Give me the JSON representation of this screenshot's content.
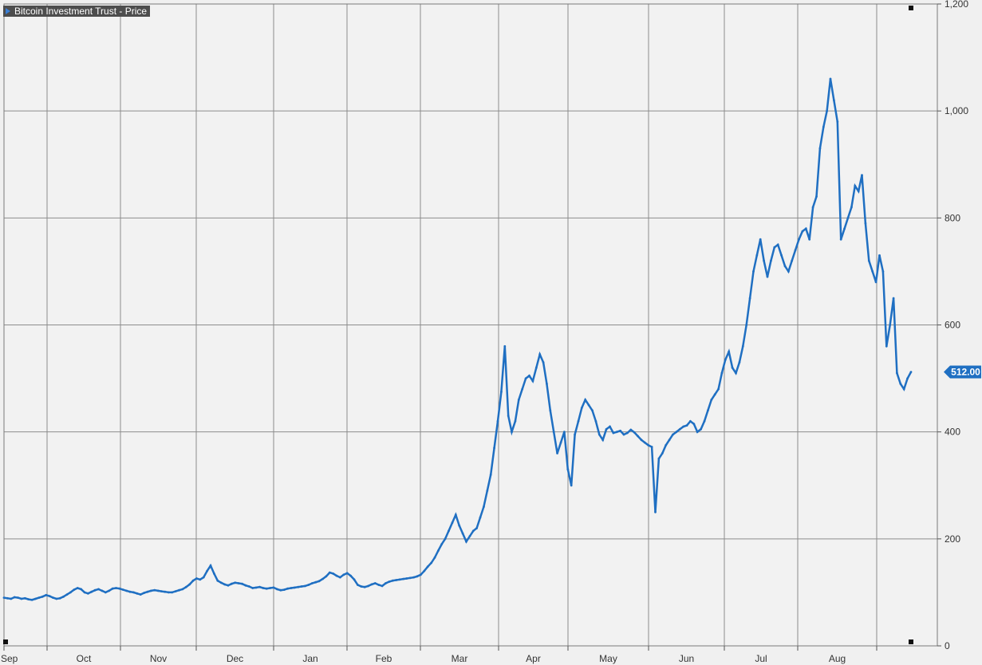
{
  "chart_data": {
    "type": "line",
    "series_label": "Bitcoin Investment Trust - Price",
    "last_value_label": "512.00",
    "last_value": 512,
    "ylim": [
      0,
      1200
    ],
    "y_ticks": [
      {
        "value": 0,
        "label": "0"
      },
      {
        "value": 200,
        "label": "200"
      },
      {
        "value": 400,
        "label": "400"
      },
      {
        "value": 600,
        "label": "600"
      },
      {
        "value": 800,
        "label": "800"
      },
      {
        "value": 1000,
        "label": "1,000"
      },
      {
        "value": 1200,
        "label": "1,200"
      }
    ],
    "x_ticks": [
      "Sep",
      "Oct",
      "Nov",
      "Dec",
      "Jan",
      "Feb",
      "Mar",
      "Apr",
      "May",
      "Jun",
      "Jul",
      "Aug"
    ],
    "series": [
      {
        "color": "#1f6fc2",
        "values": [
          90,
          89,
          88,
          91,
          90,
          88,
          89,
          87,
          86,
          88,
          90,
          92,
          95,
          93,
          90,
          88,
          89,
          92,
          96,
          100,
          105,
          108,
          106,
          100,
          98,
          101,
          104,
          106,
          103,
          100,
          103,
          107,
          108,
          107,
          105,
          103,
          101,
          100,
          98,
          96,
          99,
          101,
          103,
          104,
          103,
          102,
          101,
          100,
          100,
          102,
          104,
          106,
          110,
          115,
          122,
          126,
          124,
          128,
          140,
          150,
          135,
          122,
          118,
          115,
          113,
          116,
          118,
          117,
          116,
          113,
          111,
          108,
          109,
          110,
          108,
          107,
          108,
          109,
          106,
          104,
          105,
          107,
          108,
          109,
          110,
          111,
          112,
          114,
          117,
          119,
          121,
          125,
          130,
          137,
          135,
          131,
          128,
          133,
          136,
          131,
          124,
          114,
          111,
          110,
          112,
          115,
          117,
          114,
          112,
          117,
          120,
          122,
          123,
          124,
          125,
          126,
          127,
          128,
          130,
          133,
          140,
          148,
          155,
          165,
          178,
          190,
          200,
          215,
          230,
          245,
          225,
          210,
          195,
          205,
          215,
          220,
          240,
          260,
          290,
          320,
          370,
          420,
          475,
          560,
          430,
          400,
          420,
          460,
          480,
          500,
          505,
          495,
          520,
          545,
          530,
          490,
          440,
          400,
          360,
          380,
          400,
          330,
          300,
          395,
          420,
          445,
          460,
          450,
          440,
          420,
          395,
          385,
          405,
          410,
          398,
          400,
          402,
          395,
          398,
          404,
          399,
          392,
          385,
          380,
          375,
          372,
          250,
          350,
          360,
          375,
          385,
          395,
          400,
          405,
          410,
          412,
          420,
          415,
          400,
          405,
          420,
          440,
          460,
          470,
          480,
          510,
          535,
          550,
          520,
          510,
          530,
          560,
          600,
          650,
          700,
          730,
          760,
          720,
          690,
          720,
          745,
          750,
          730,
          710,
          700,
          720,
          740,
          760,
          775,
          780,
          760,
          820,
          840,
          930,
          970,
          1000,
          1060,
          1020,
          980,
          760,
          780,
          800,
          820,
          860,
          850,
          880,
          790,
          720,
          700,
          680,
          730,
          700,
          560,
          600,
          650,
          510,
          490,
          480,
          500,
          512
        ]
      }
    ]
  }
}
